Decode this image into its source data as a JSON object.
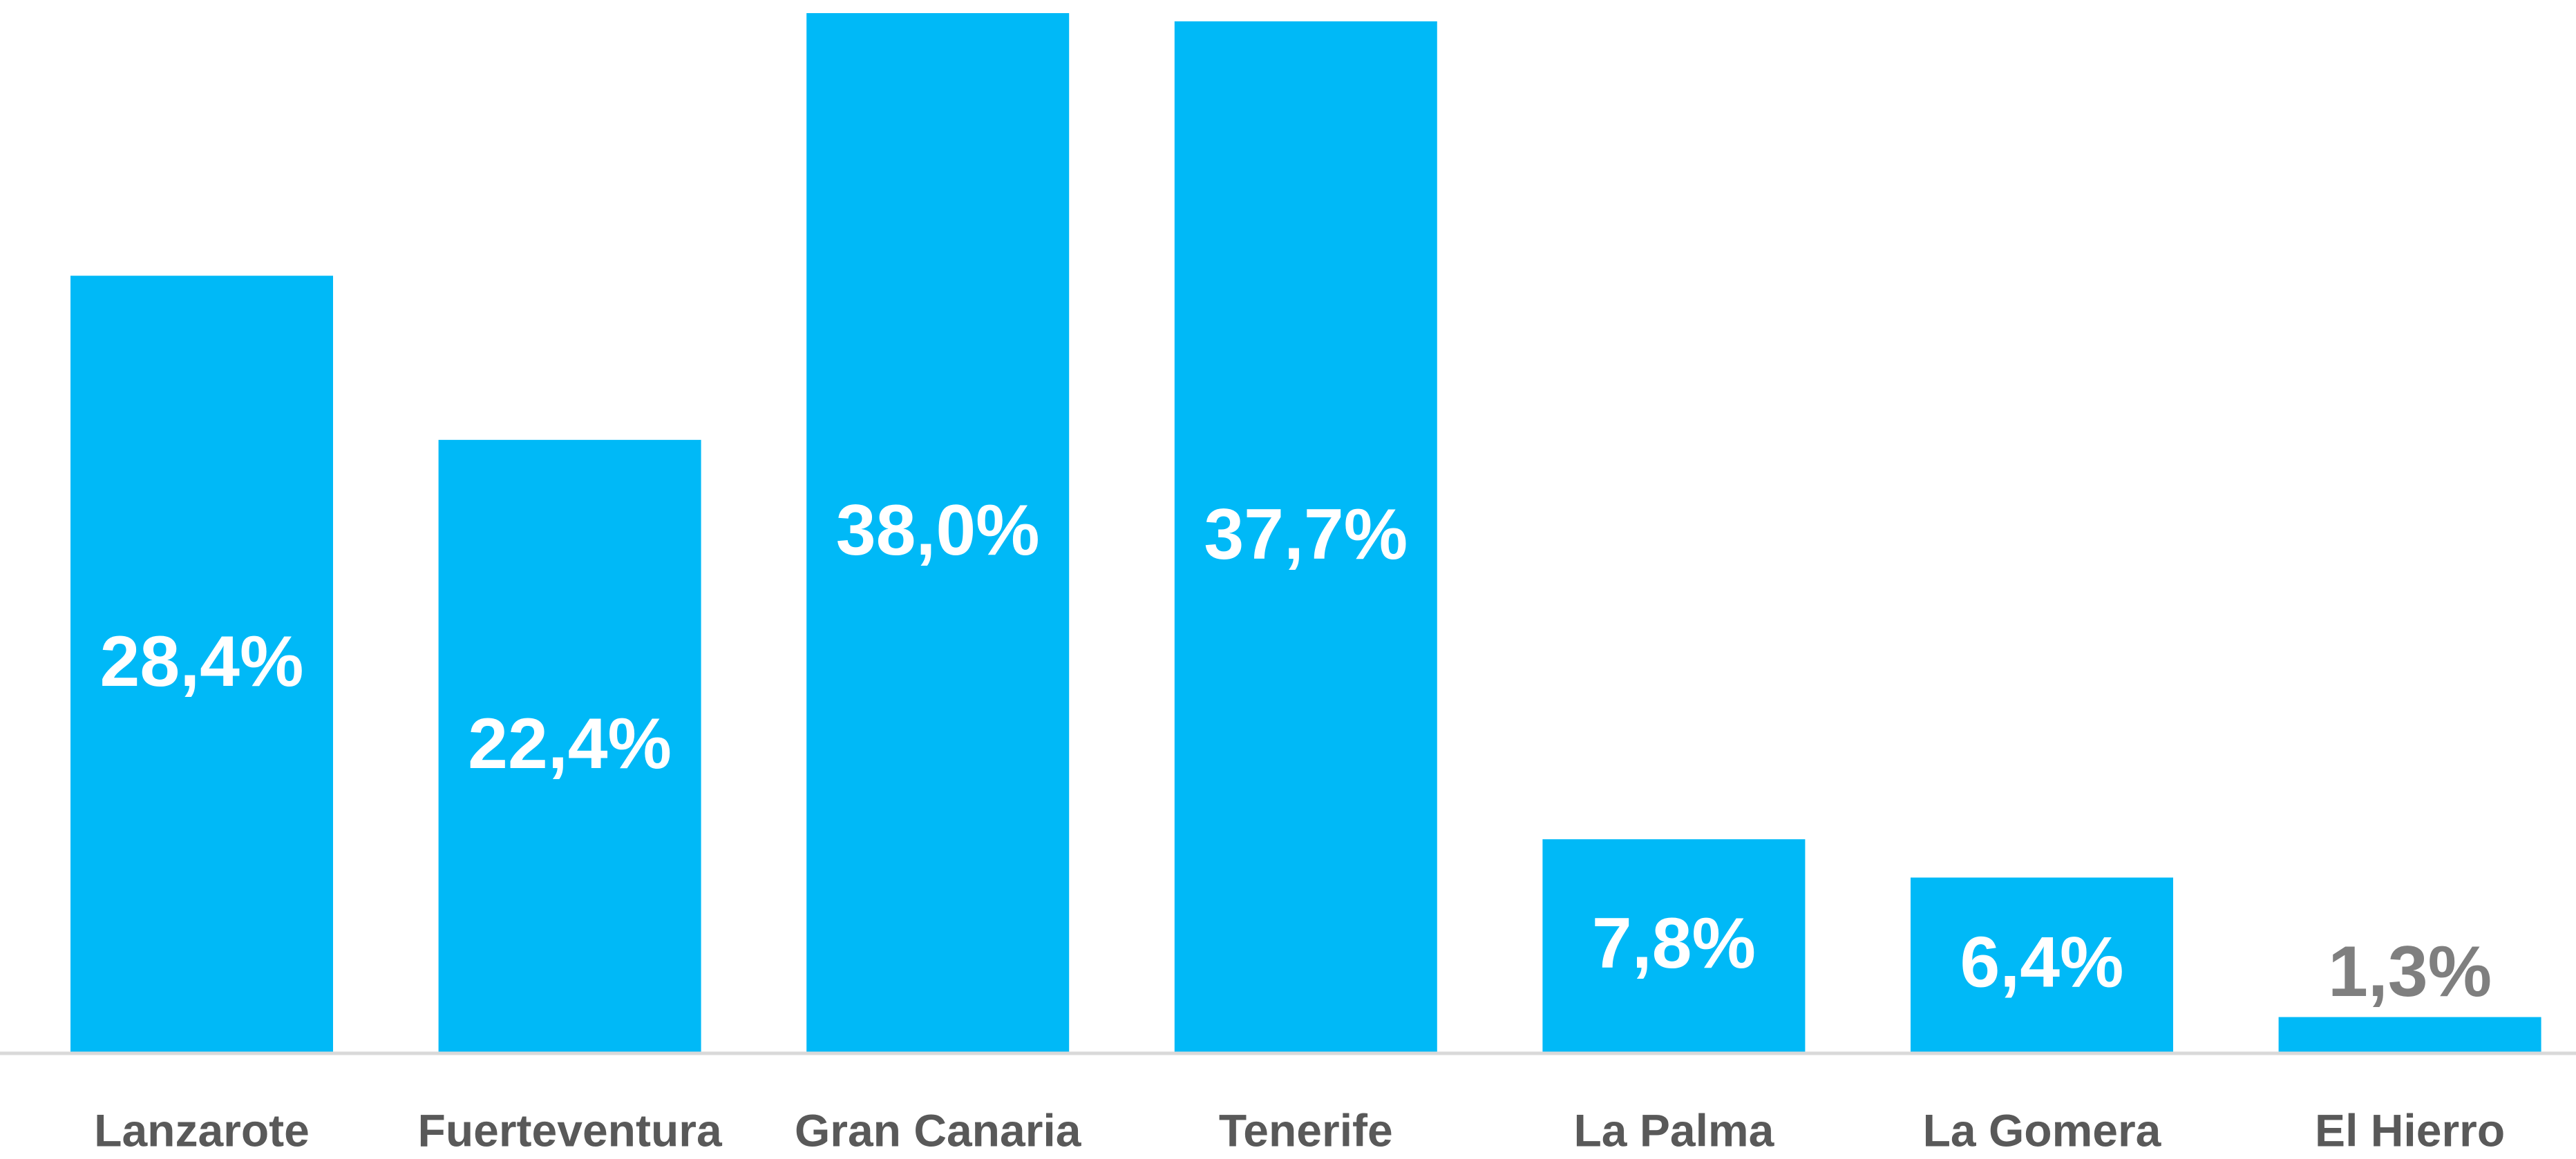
{
  "chart_data": {
    "type": "bar",
    "categories": [
      "Lanzarote",
      "Fuerteventura",
      "Gran Canaria",
      "Tenerife",
      "La Palma",
      "La Gomera",
      "El Hierro"
    ],
    "values": [
      28.4,
      22.4,
      38.0,
      37.7,
      7.8,
      6.4,
      1.3
    ],
    "value_labels": [
      "28,4%",
      "22,4%",
      "38,0%",
      "37,7%",
      "7,8%",
      "6,4%",
      "1,3%"
    ],
    "color": "#00b9f7"
  }
}
